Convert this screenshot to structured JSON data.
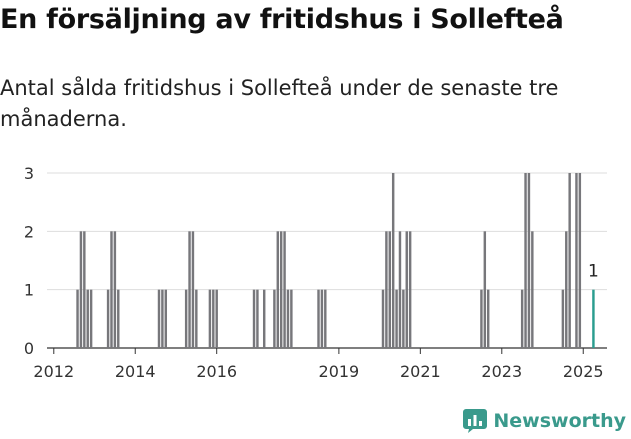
{
  "header": {
    "title": "En försäljning av fritidshus i Sollefteå",
    "subtitle": "Antal sålda fritidshus i Sollefteå under de senaste tre månaderna."
  },
  "brand": {
    "name": "Newsworthy",
    "icon": "newsworthy-logo-icon",
    "color": "#3a9a8c"
  },
  "chart_data": {
    "type": "bar",
    "title": "En försäljning av fritidshus i Sollefteå",
    "subtitle": "Antal sålda fritidshus i Sollefteå under de senaste tre månaderna.",
    "xlabel": "",
    "ylabel": "",
    "ylim": [
      0,
      3
    ],
    "yticks": [
      0,
      1,
      2,
      3
    ],
    "xlim": [
      "2011-11",
      "2025-08"
    ],
    "xticks": [
      "2012",
      "2014",
      "2016",
      "2019",
      "2021",
      "2023",
      "2025"
    ],
    "grid": true,
    "bar_color": "#77777b",
    "highlight_color": "#2a9d8f",
    "annotation": {
      "x": "2025-04",
      "label": "1"
    },
    "series": [
      {
        "x": [
          "2012-08",
          "2012-09",
          "2012-10",
          "2012-11",
          "2012-12",
          "2013-05",
          "2013-06",
          "2013-07",
          "2013-08",
          "2014-08",
          "2014-09",
          "2014-10",
          "2015-04",
          "2015-05",
          "2015-06",
          "2015-07",
          "2015-11",
          "2015-12",
          "2016-01",
          "2016-12",
          "2017-01",
          "2017-03",
          "2017-06",
          "2017-07",
          "2017-08",
          "2017-09",
          "2017-10",
          "2017-11",
          "2018-07",
          "2018-08",
          "2018-09",
          "2020-02",
          "2020-03",
          "2020-04",
          "2020-05",
          "2020-06",
          "2020-07",
          "2020-08",
          "2020-09",
          "2020-10",
          "2022-07",
          "2022-08",
          "2022-09",
          "2023-07",
          "2023-08",
          "2023-09",
          "2023-10",
          "2024-07",
          "2024-08",
          "2024-09",
          "2024-11",
          "2024-12",
          "2025-04"
        ],
        "values": [
          1,
          2,
          2,
          1,
          1,
          1,
          2,
          2,
          1,
          1,
          1,
          1,
          1,
          2,
          2,
          1,
          1,
          1,
          1,
          1,
          1,
          1,
          1,
          2,
          2,
          2,
          1,
          1,
          1,
          1,
          1,
          1,
          2,
          2,
          3,
          1,
          2,
          1,
          2,
          2,
          1,
          2,
          1,
          1,
          3,
          3,
          2,
          1,
          2,
          3,
          3,
          3,
          1
        ]
      }
    ]
  }
}
